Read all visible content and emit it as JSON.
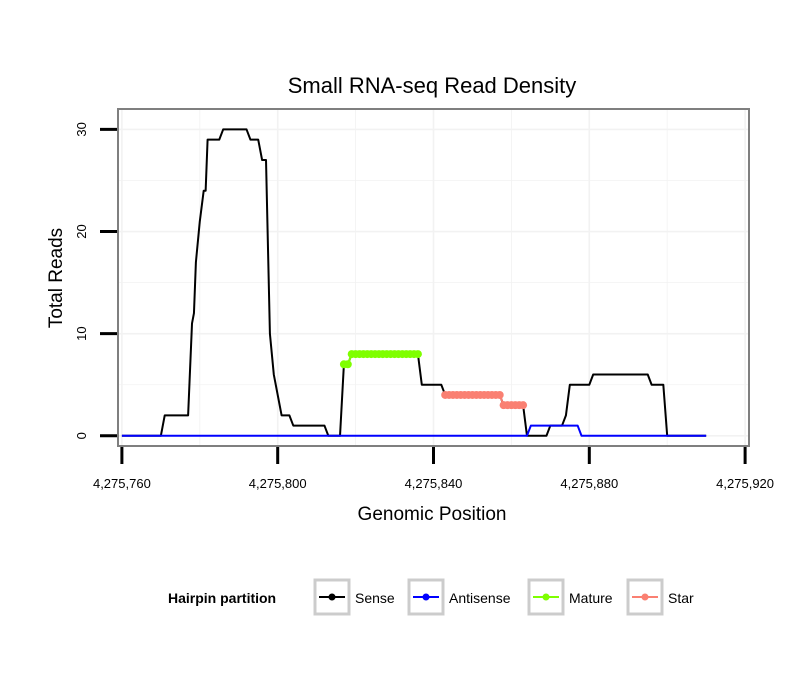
{
  "chart_data": {
    "type": "line",
    "title": "Small RNA-seq Read Density",
    "xlabel": "Genomic Position",
    "ylabel": "Total Reads",
    "xlim": [
      4275759,
      4275921
    ],
    "ylim": [
      -1,
      32
    ],
    "x_ticks": [
      4275760,
      4275800,
      4275840,
      4275880,
      4275920
    ],
    "x_tick_labels": [
      "4,275,760",
      "4,275,800",
      "4,275,840",
      "4,275,880",
      "4,275,920"
    ],
    "y_ticks": [
      0,
      10,
      20,
      30
    ],
    "y_tick_labels": [
      "0",
      "10",
      "20",
      "30"
    ],
    "grid": true,
    "legend": {
      "title": "Hairpin partition",
      "position": "bottom",
      "entries": [
        "Sense",
        "Antisense",
        "Mature",
        "Star"
      ]
    },
    "series": [
      {
        "name": "Sense",
        "color": "#000000",
        "style": "line",
        "points": [
          [
            4275760,
            0
          ],
          [
            4275770,
            0
          ],
          [
            4275771,
            2
          ],
          [
            4275777,
            2
          ],
          [
            4275778,
            11
          ],
          [
            4275778.5,
            12
          ],
          [
            4275779,
            17
          ],
          [
            4275780,
            21
          ],
          [
            4275781,
            24
          ],
          [
            4275781.5,
            24
          ],
          [
            4275782,
            29
          ],
          [
            4275785,
            29
          ],
          [
            4275786,
            30
          ],
          [
            4275792,
            30
          ],
          [
            4275793,
            29
          ],
          [
            4275795,
            29
          ],
          [
            4275796,
            27
          ],
          [
            4275797,
            27
          ],
          [
            4275798,
            10
          ],
          [
            4275799,
            6
          ],
          [
            4275800,
            4
          ],
          [
            4275801,
            2
          ],
          [
            4275803,
            2
          ],
          [
            4275804,
            1
          ],
          [
            4275812,
            1
          ],
          [
            4275813,
            0
          ],
          [
            4275816,
            0
          ],
          [
            4275817,
            7
          ],
          [
            4275818,
            7
          ],
          [
            4275819,
            8
          ],
          [
            4275836,
            8
          ],
          [
            4275837,
            5
          ],
          [
            4275842,
            5
          ],
          [
            4275843,
            4
          ],
          [
            4275857,
            4
          ],
          [
            4275858,
            3
          ],
          [
            4275863,
            3
          ],
          [
            4275864,
            0
          ],
          [
            4275869,
            0
          ],
          [
            4275870,
            1
          ],
          [
            4275873,
            1
          ],
          [
            4275874,
            2
          ],
          [
            4275875,
            5
          ],
          [
            4275880,
            5
          ],
          [
            4275881,
            6
          ],
          [
            4275895,
            6
          ],
          [
            4275896,
            5
          ],
          [
            4275899,
            5
          ],
          [
            4275900,
            0
          ],
          [
            4275910,
            0
          ]
        ]
      },
      {
        "name": "Antisense",
        "color": "#0000ff",
        "style": "line",
        "points": [
          [
            4275760,
            0
          ],
          [
            4275864,
            0
          ],
          [
            4275865,
            1
          ],
          [
            4275877,
            1
          ],
          [
            4275878,
            0
          ],
          [
            4275910,
            0
          ]
        ]
      },
      {
        "name": "Mature",
        "color": "#7fff00",
        "style": "points",
        "points": [
          [
            4275817,
            7
          ],
          [
            4275818,
            7
          ],
          [
            4275819,
            8
          ],
          [
            4275820,
            8
          ],
          [
            4275821,
            8
          ],
          [
            4275822,
            8
          ],
          [
            4275823,
            8
          ],
          [
            4275824,
            8
          ],
          [
            4275825,
            8
          ],
          [
            4275826,
            8
          ],
          [
            4275827,
            8
          ],
          [
            4275828,
            8
          ],
          [
            4275829,
            8
          ],
          [
            4275830,
            8
          ],
          [
            4275831,
            8
          ],
          [
            4275832,
            8
          ],
          [
            4275833,
            8
          ],
          [
            4275834,
            8
          ],
          [
            4275835,
            8
          ],
          [
            4275836,
            8
          ]
        ]
      },
      {
        "name": "Star",
        "color": "#fa8072",
        "style": "points",
        "points": [
          [
            4275843,
            4
          ],
          [
            4275844,
            4
          ],
          [
            4275845,
            4
          ],
          [
            4275846,
            4
          ],
          [
            4275847,
            4
          ],
          [
            4275848,
            4
          ],
          [
            4275849,
            4
          ],
          [
            4275850,
            4
          ],
          [
            4275851,
            4
          ],
          [
            4275852,
            4
          ],
          [
            4275853,
            4
          ],
          [
            4275854,
            4
          ],
          [
            4275855,
            4
          ],
          [
            4275856,
            4
          ],
          [
            4275857,
            4
          ],
          [
            4275858,
            3
          ],
          [
            4275859,
            3
          ],
          [
            4275860,
            3
          ],
          [
            4275861,
            3
          ],
          [
            4275862,
            3
          ],
          [
            4275863,
            3
          ]
        ]
      }
    ]
  }
}
